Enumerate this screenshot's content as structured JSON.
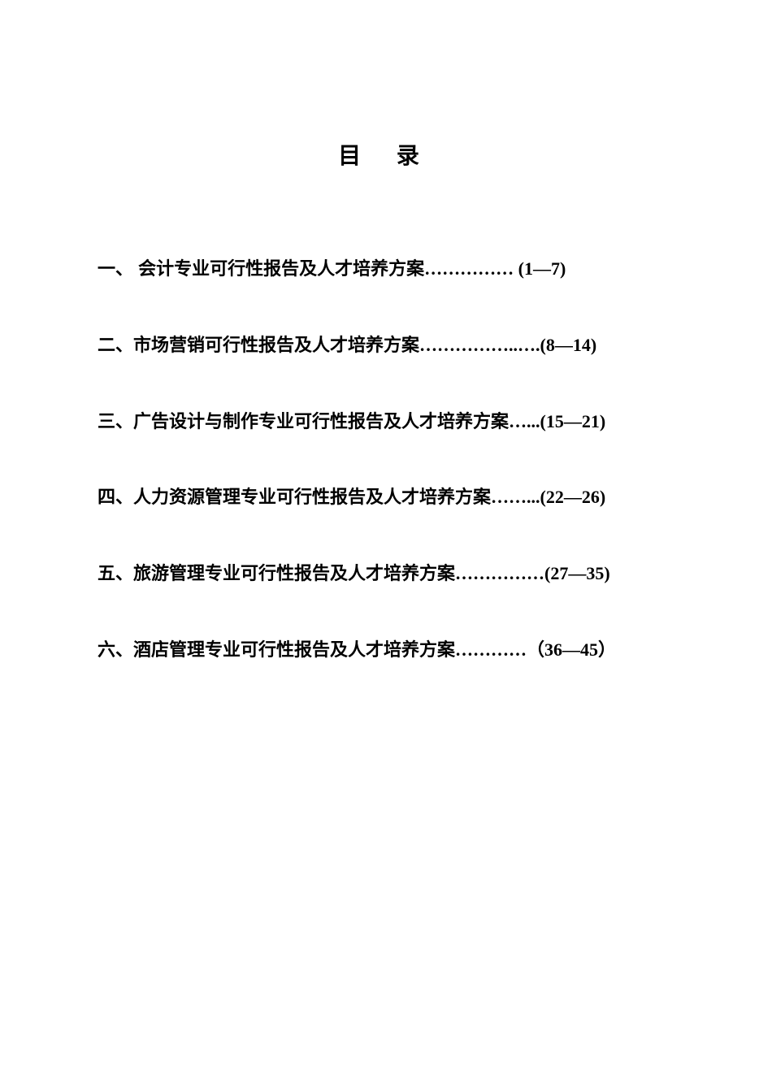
{
  "title": "目  录",
  "entries": [
    {
      "num": "一、",
      "label": " 会计专业可行性报告及人才培养方案",
      "leader": "……………",
      "page_prefix": " (",
      "page_start": "1",
      "dash": "—",
      "page_end": "7",
      "page_suffix": ")"
    },
    {
      "num": "二、",
      "label": "市场营销可行性报告及人才培养方案",
      "leader": "……………..….",
      "page_prefix": "(",
      "page_start": "8",
      "dash": "—",
      "page_end": "14",
      "page_suffix": ")"
    },
    {
      "num": "三、",
      "label": "广告设计与制作专业可行性报告及人才培养方案",
      "leader": "…...",
      "page_prefix": "(",
      "page_start": "15",
      "dash": "—",
      "page_end": "21",
      "page_suffix": ")"
    },
    {
      "num": "四、",
      "label": "人力资源管理专业可行性报告及人才培养方案",
      "leader": "……...",
      "page_prefix": "(",
      "page_start": "22",
      "dash": "—",
      "page_end": "26",
      "page_suffix": ")"
    },
    {
      "num": "五、",
      "label": "旅游管理专业可行性报告及人才培养方案",
      "leader": "……………",
      "page_prefix": "(",
      "page_start": "27",
      "dash": "—",
      "page_end": "35",
      "page_suffix": ")"
    },
    {
      "num": "六、",
      "label": "酒店管理专业可行性报告及人才培养方案",
      "leader": "…………",
      "page_prefix": "（",
      "page_start": "36",
      "dash": "—",
      "page_end": "45",
      "page_suffix": "）"
    }
  ],
  "colors": {
    "background": "#ffffff",
    "text": "#000000"
  },
  "typography": {
    "title_fontsize": 28,
    "entry_fontsize": 22,
    "title_font": "SimHei",
    "body_font": "SimSun"
  }
}
